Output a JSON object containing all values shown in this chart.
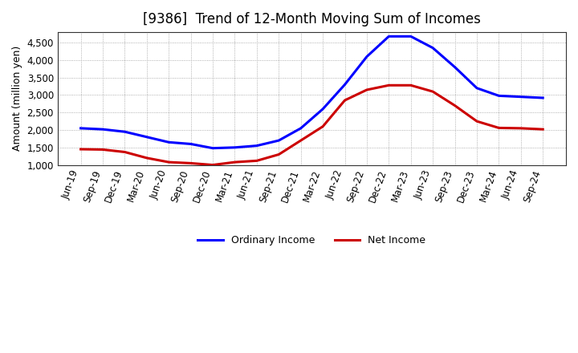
{
  "title": "[9386]  Trend of 12-Month Moving Sum of Incomes",
  "ylabel": "Amount (million yen)",
  "ylim": [
    1000,
    4800
  ],
  "yticks": [
    1000,
    1500,
    2000,
    2500,
    3000,
    3500,
    4000,
    4500
  ],
  "background_color": "#ffffff",
  "plot_bg_color": "#ffffff",
  "x_labels": [
    "Jun-19",
    "Sep-19",
    "Dec-19",
    "Mar-20",
    "Jun-20",
    "Sep-20",
    "Dec-20",
    "Mar-21",
    "Jun-21",
    "Sep-21",
    "Dec-21",
    "Mar-22",
    "Jun-22",
    "Sep-22",
    "Dec-22",
    "Mar-23",
    "Jun-23",
    "Sep-23",
    "Dec-23",
    "Mar-24",
    "Jun-24",
    "Sep-24"
  ],
  "ordinary_income": [
    2050,
    2020,
    1950,
    1800,
    1650,
    1600,
    1480,
    1500,
    1550,
    1700,
    2050,
    2600,
    3300,
    4100,
    4680,
    4680,
    4350,
    3800,
    3200,
    2980,
    2950,
    2920
  ],
  "net_income": [
    1450,
    1440,
    1370,
    1200,
    1080,
    1050,
    1000,
    1080,
    1120,
    1300,
    1700,
    2100,
    2850,
    3150,
    3280,
    3280,
    3100,
    2700,
    2250,
    2060,
    2050,
    2020
  ],
  "ordinary_color": "#0000ff",
  "net_color": "#cc0000",
  "line_width": 2.2,
  "legend_ordinary": "Ordinary Income",
  "legend_net": "Net Income",
  "title_fontsize": 12,
  "label_fontsize": 9,
  "tick_fontsize": 8.5
}
